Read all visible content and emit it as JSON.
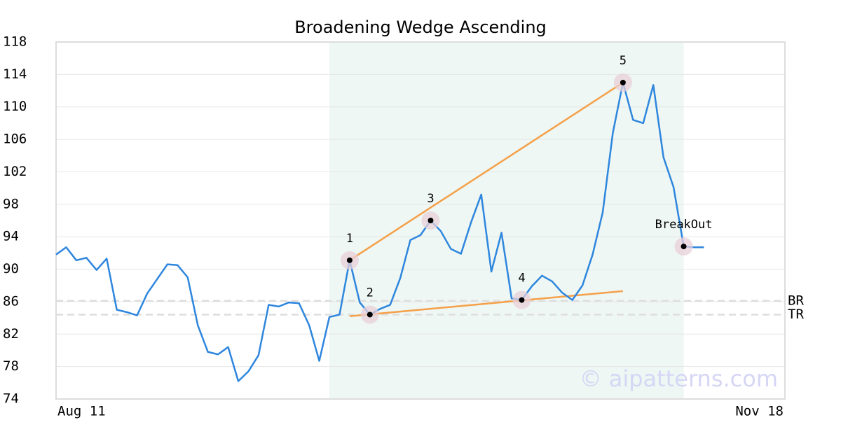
{
  "chart_data": {
    "type": "line",
    "title": "Broadening Wedge Ascending",
    "categories": [
      "Aug 11",
      null,
      null,
      null,
      null,
      null,
      null,
      null,
      null,
      null,
      null,
      null,
      null,
      null,
      null,
      null,
      null,
      null,
      null,
      null,
      null,
      null,
      null,
      null,
      null,
      null,
      null,
      null,
      null,
      null,
      null,
      null,
      null,
      null,
      null,
      null,
      null,
      null,
      null,
      null,
      null,
      null,
      null,
      null,
      null,
      null,
      null,
      null,
      null,
      null,
      null,
      null,
      null,
      null,
      null,
      null,
      null,
      null,
      null,
      null,
      null,
      null,
      null,
      null,
      "Nov 18"
    ],
    "series": [
      {
        "color": "#2e86de",
        "values": [
          91.8,
          92.7,
          91.1,
          91.4,
          89.9,
          91.3,
          85.0,
          84.7,
          84.3,
          87.0,
          88.8,
          90.6,
          90.5,
          89.0,
          83.1,
          79.8,
          79.5,
          80.4,
          76.2,
          77.4,
          79.4,
          85.6,
          85.4,
          85.9,
          85.8,
          83.1,
          78.7,
          84.1,
          84.4,
          91.1,
          85.9,
          84.4,
          85.1,
          85.6,
          88.9,
          93.6,
          94.2,
          96.0,
          94.7,
          92.5,
          91.9,
          95.8,
          99.2,
          89.7,
          94.5,
          86.4,
          86.2,
          87.9,
          89.2,
          88.5,
          87.1,
          86.2,
          88.0,
          91.8,
          97.0,
          106.8,
          113.0,
          108.4,
          108.0,
          112.7,
          103.8,
          100.1,
          92.8,
          92.7,
          92.7
        ]
      }
    ],
    "ylim": [
      74,
      118
    ],
    "yticks": [
      74,
      78,
      82,
      86,
      90,
      94,
      98,
      102,
      106,
      110,
      114,
      118
    ],
    "grid": true,
    "shaded_range": {
      "x": [
        27,
        62
      ],
      "color": "#eef7f3"
    },
    "trend_lines": [
      {
        "x": [
          29,
          56
        ],
        "y": [
          91.1,
          113.0
        ],
        "color": "#f5a04a"
      },
      {
        "x": [
          29,
          56
        ],
        "y": [
          84.2,
          87.3
        ],
        "color": "#f5a04a"
      }
    ],
    "points": [
      {
        "label": "1",
        "x": 29,
        "value": 91.1
      },
      {
        "label": "2",
        "x": 31,
        "value": 84.4
      },
      {
        "label": "3",
        "x": 37,
        "value": 96.0
      },
      {
        "label": "4",
        "x": 46,
        "value": 86.2
      },
      {
        "label": "5",
        "x": 56,
        "value": 113.0
      },
      {
        "label": "BreakOut",
        "x": 62,
        "value": 92.8
      }
    ],
    "levels": [
      {
        "label": "BR",
        "value": 86.1
      },
      {
        "label": "TR",
        "value": 84.4
      }
    ],
    "watermark": "© aipatterns.com"
  }
}
